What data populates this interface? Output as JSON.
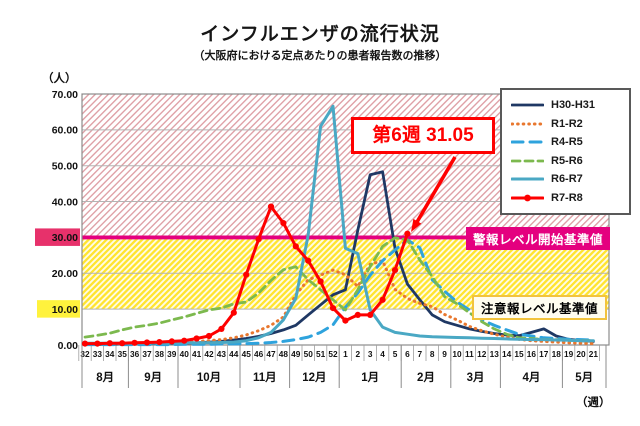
{
  "header": {
    "title": "インフルエンザの流行状況",
    "subtitle": "（大阪府における定点あたりの患者報告数の推移）"
  },
  "axes": {
    "y_unit": "（人）",
    "x_unit": "（週）"
  },
  "annotation": {
    "label": "第6週 31.05",
    "week": 6,
    "value": 31.05
  },
  "thresholds": {
    "alert": {
      "label": "警報レベル開始基準値",
      "value": 30,
      "line_color": "#e4007f",
      "band_stripe": "#dfa1a7"
    },
    "caution": {
      "label": "注意報レベル基準値",
      "value": 10,
      "band_stripe": "#ffe430",
      "band_bg": "#fffce4"
    }
  },
  "chart_data": {
    "type": "line",
    "title": "インフルエンザの流行状況",
    "subtitle": "（大阪府における定点あたりの患者報告数の推移）",
    "xlabel": "（週）",
    "ylabel": "（人）",
    "ylim": [
      0,
      70
    ],
    "y_tick_step": 10,
    "grid": true,
    "legend_position": "top-right",
    "categories": [
      32,
      33,
      34,
      35,
      36,
      37,
      38,
      39,
      40,
      41,
      42,
      43,
      44,
      45,
      46,
      47,
      48,
      49,
      50,
      51,
      52,
      1,
      2,
      3,
      4,
      5,
      6,
      7,
      8,
      9,
      10,
      11,
      12,
      13,
      14,
      15,
      16,
      17,
      18,
      19,
      20,
      21
    ],
    "months": [
      {
        "label": "8月",
        "weeks": 4
      },
      {
        "label": "9月",
        "weeks": 4
      },
      {
        "label": "10月",
        "weeks": 5
      },
      {
        "label": "11月",
        "weeks": 4
      },
      {
        "label": "12月",
        "weeks": 4
      },
      {
        "label": "1月",
        "weeks": 5
      },
      {
        "label": "2月",
        "weeks": 4
      },
      {
        "label": "3月",
        "weeks": 4
      },
      {
        "label": "4月",
        "weeks": 5
      },
      {
        "label": "5月",
        "weeks": 3
      }
    ],
    "series": [
      {
        "name": "H30-H31",
        "color": "#1f3864",
        "style": "solid",
        "width": 2.8,
        "markers": false,
        "values": [
          0.2,
          0.2,
          0.2,
          0.3,
          0.3,
          0.3,
          0.4,
          0.4,
          0.5,
          0.6,
          0.8,
          1.0,
          1.4,
          1.8,
          2.4,
          3.2,
          4.2,
          5.5,
          8.4,
          11.2,
          14.0,
          15.4,
          32.0,
          47.5,
          48.3,
          27.0,
          17.0,
          12.6,
          8.4,
          6.5,
          5.5,
          4.5,
          3.8,
          3.2,
          2.8,
          2.6,
          3.5,
          4.5,
          2.5,
          1.6,
          1.2,
          1.0
        ]
      },
      {
        "name": "R1-R2",
        "color": "#e8772e",
        "style": "dotted",
        "width": 3,
        "markers": false,
        "values": [
          0.3,
          0.3,
          0.4,
          0.4,
          0.5,
          0.5,
          0.6,
          0.7,
          0.8,
          1.0,
          1.2,
          1.5,
          2.0,
          2.8,
          4.0,
          5.5,
          7.8,
          14.0,
          18.2,
          19.5,
          20.9,
          19.6,
          16.3,
          22.5,
          23.5,
          15.5,
          13.0,
          11.6,
          10.7,
          8.5,
          7.0,
          5.2,
          4.0,
          3.0,
          2.2,
          1.6,
          1.2,
          1.0,
          0.8,
          0.6,
          0.5,
          0.4
        ]
      },
      {
        "name": "R4-R5",
        "color": "#2ea3dd",
        "style": "longdash",
        "width": 3,
        "markers": false,
        "values": [
          0.1,
          0.1,
          0.1,
          0.1,
          0.1,
          0.1,
          0.1,
          0.1,
          0.2,
          0.2,
          0.2,
          0.3,
          0.3,
          0.4,
          0.5,
          0.7,
          1.0,
          1.5,
          2.2,
          3.5,
          5.6,
          10.5,
          14.5,
          19.5,
          23.5,
          26.5,
          29.3,
          27.1,
          18.2,
          15.0,
          12.0,
          9.8,
          7.0,
          5.5,
          4.2,
          3.0,
          2.5,
          2.0,
          1.8,
          1.6,
          1.5,
          1.4
        ]
      },
      {
        "name": "R5-R6",
        "color": "#7cb94e",
        "style": "dashed",
        "width": 2.8,
        "markers": false,
        "values": [
          2.2,
          2.7,
          3.3,
          4.2,
          5.0,
          5.5,
          6.1,
          7.0,
          7.8,
          8.8,
          9.8,
          10.3,
          11.5,
          12.0,
          14.5,
          18.0,
          21.0,
          21.8,
          18.2,
          15.4,
          12.6,
          9.8,
          15.4,
          21.9,
          27.5,
          29.9,
          29.3,
          23.7,
          19.1,
          13.5,
          11.5,
          9.0,
          6.5,
          4.5,
          3.0,
          2.0,
          1.8,
          1.5,
          1.5,
          1.3,
          1.2,
          1.2
        ]
      },
      {
        "name": "R6-R7",
        "color": "#4aa8c4",
        "style": "solid",
        "width": 3,
        "markers": false,
        "values": [
          0.5,
          0.5,
          0.5,
          0.5,
          0.5,
          0.5,
          0.5,
          0.5,
          0.6,
          0.6,
          0.6,
          0.7,
          0.8,
          1.2,
          2.0,
          3.5,
          7.0,
          13.0,
          30.7,
          61.0,
          66.6,
          27.0,
          25.5,
          9.8,
          5.0,
          3.5,
          3.0,
          2.5,
          2.3,
          2.2,
          2.1,
          2.0,
          1.9,
          1.8,
          1.7,
          1.6,
          1.5,
          1.5,
          1.4,
          1.3,
          1.2,
          1.2
        ]
      },
      {
        "name": "R7-R8",
        "color": "#fe0000",
        "style": "solid",
        "width": 3,
        "markers": true,
        "values": [
          0.4,
          0.4,
          0.5,
          0.5,
          0.6,
          0.7,
          0.8,
          1.0,
          1.2,
          1.8,
          2.5,
          4.5,
          9.0,
          19.6,
          29.5,
          38.6,
          34.0,
          27.5,
          23.5,
          17.7,
          10.3,
          6.8,
          8.4,
          8.4,
          12.6,
          20.9,
          31.05,
          null,
          null,
          null,
          null,
          null,
          null,
          null,
          null,
          null,
          null,
          null,
          null,
          null,
          null,
          null
        ]
      }
    ]
  }
}
